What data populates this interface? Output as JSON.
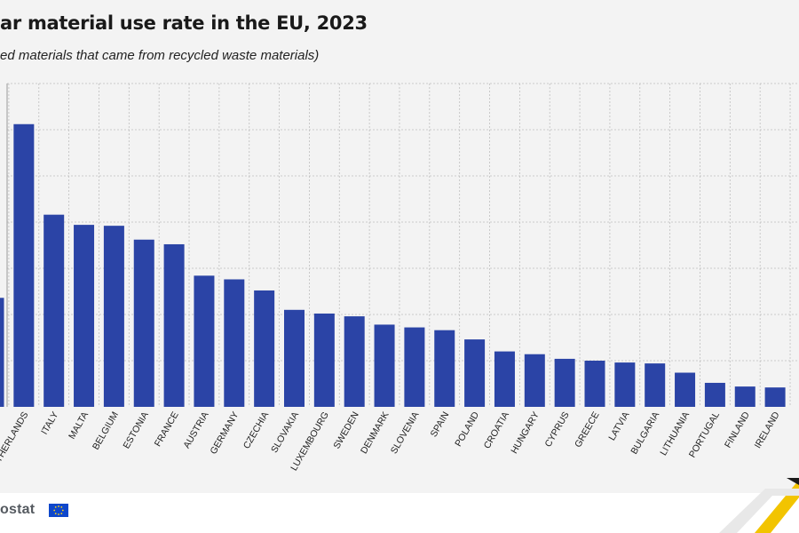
{
  "header": {
    "title": "ar material use rate in the EU, 2023",
    "subtitle": "ed materials that came from recycled waste materials)"
  },
  "footer": {
    "brand": "ostat"
  },
  "colors": {
    "bar": "#2b44a6",
    "grid": "#bfbfbf",
    "background": "#f3f3f3"
  },
  "chart_data": {
    "type": "bar",
    "categories": [
      "",
      "NETHERLANDS",
      "ITALY",
      "MALTA",
      "BELGIUM",
      "ESTONIA",
      "FRANCE",
      "AUSTRIA",
      "GERMANY",
      "CZECHIA",
      "SLOVAKIA",
      "LUXEMBOURG",
      "SWEDEN",
      "DENMARK",
      "SLOVENIA",
      "SPAIN",
      "POLAND",
      "CROATIA",
      "HUNGARY",
      "CYPRUS",
      "GREECE",
      "LATVIA",
      "BULGARIA",
      "LITHUANIA",
      "PORTUGAL",
      "FINLAND",
      "IRELAND"
    ],
    "values": [
      11.8,
      30.6,
      20.8,
      19.7,
      19.6,
      18.1,
      17.6,
      14.2,
      13.8,
      12.6,
      10.5,
      10.1,
      9.8,
      8.9,
      8.6,
      8.3,
      7.3,
      6.0,
      5.7,
      5.2,
      5.0,
      4.8,
      4.7,
      3.7,
      2.6,
      2.2,
      2.1
    ],
    "ylim": [
      0,
      35
    ],
    "grid": true,
    "legend": "none"
  }
}
